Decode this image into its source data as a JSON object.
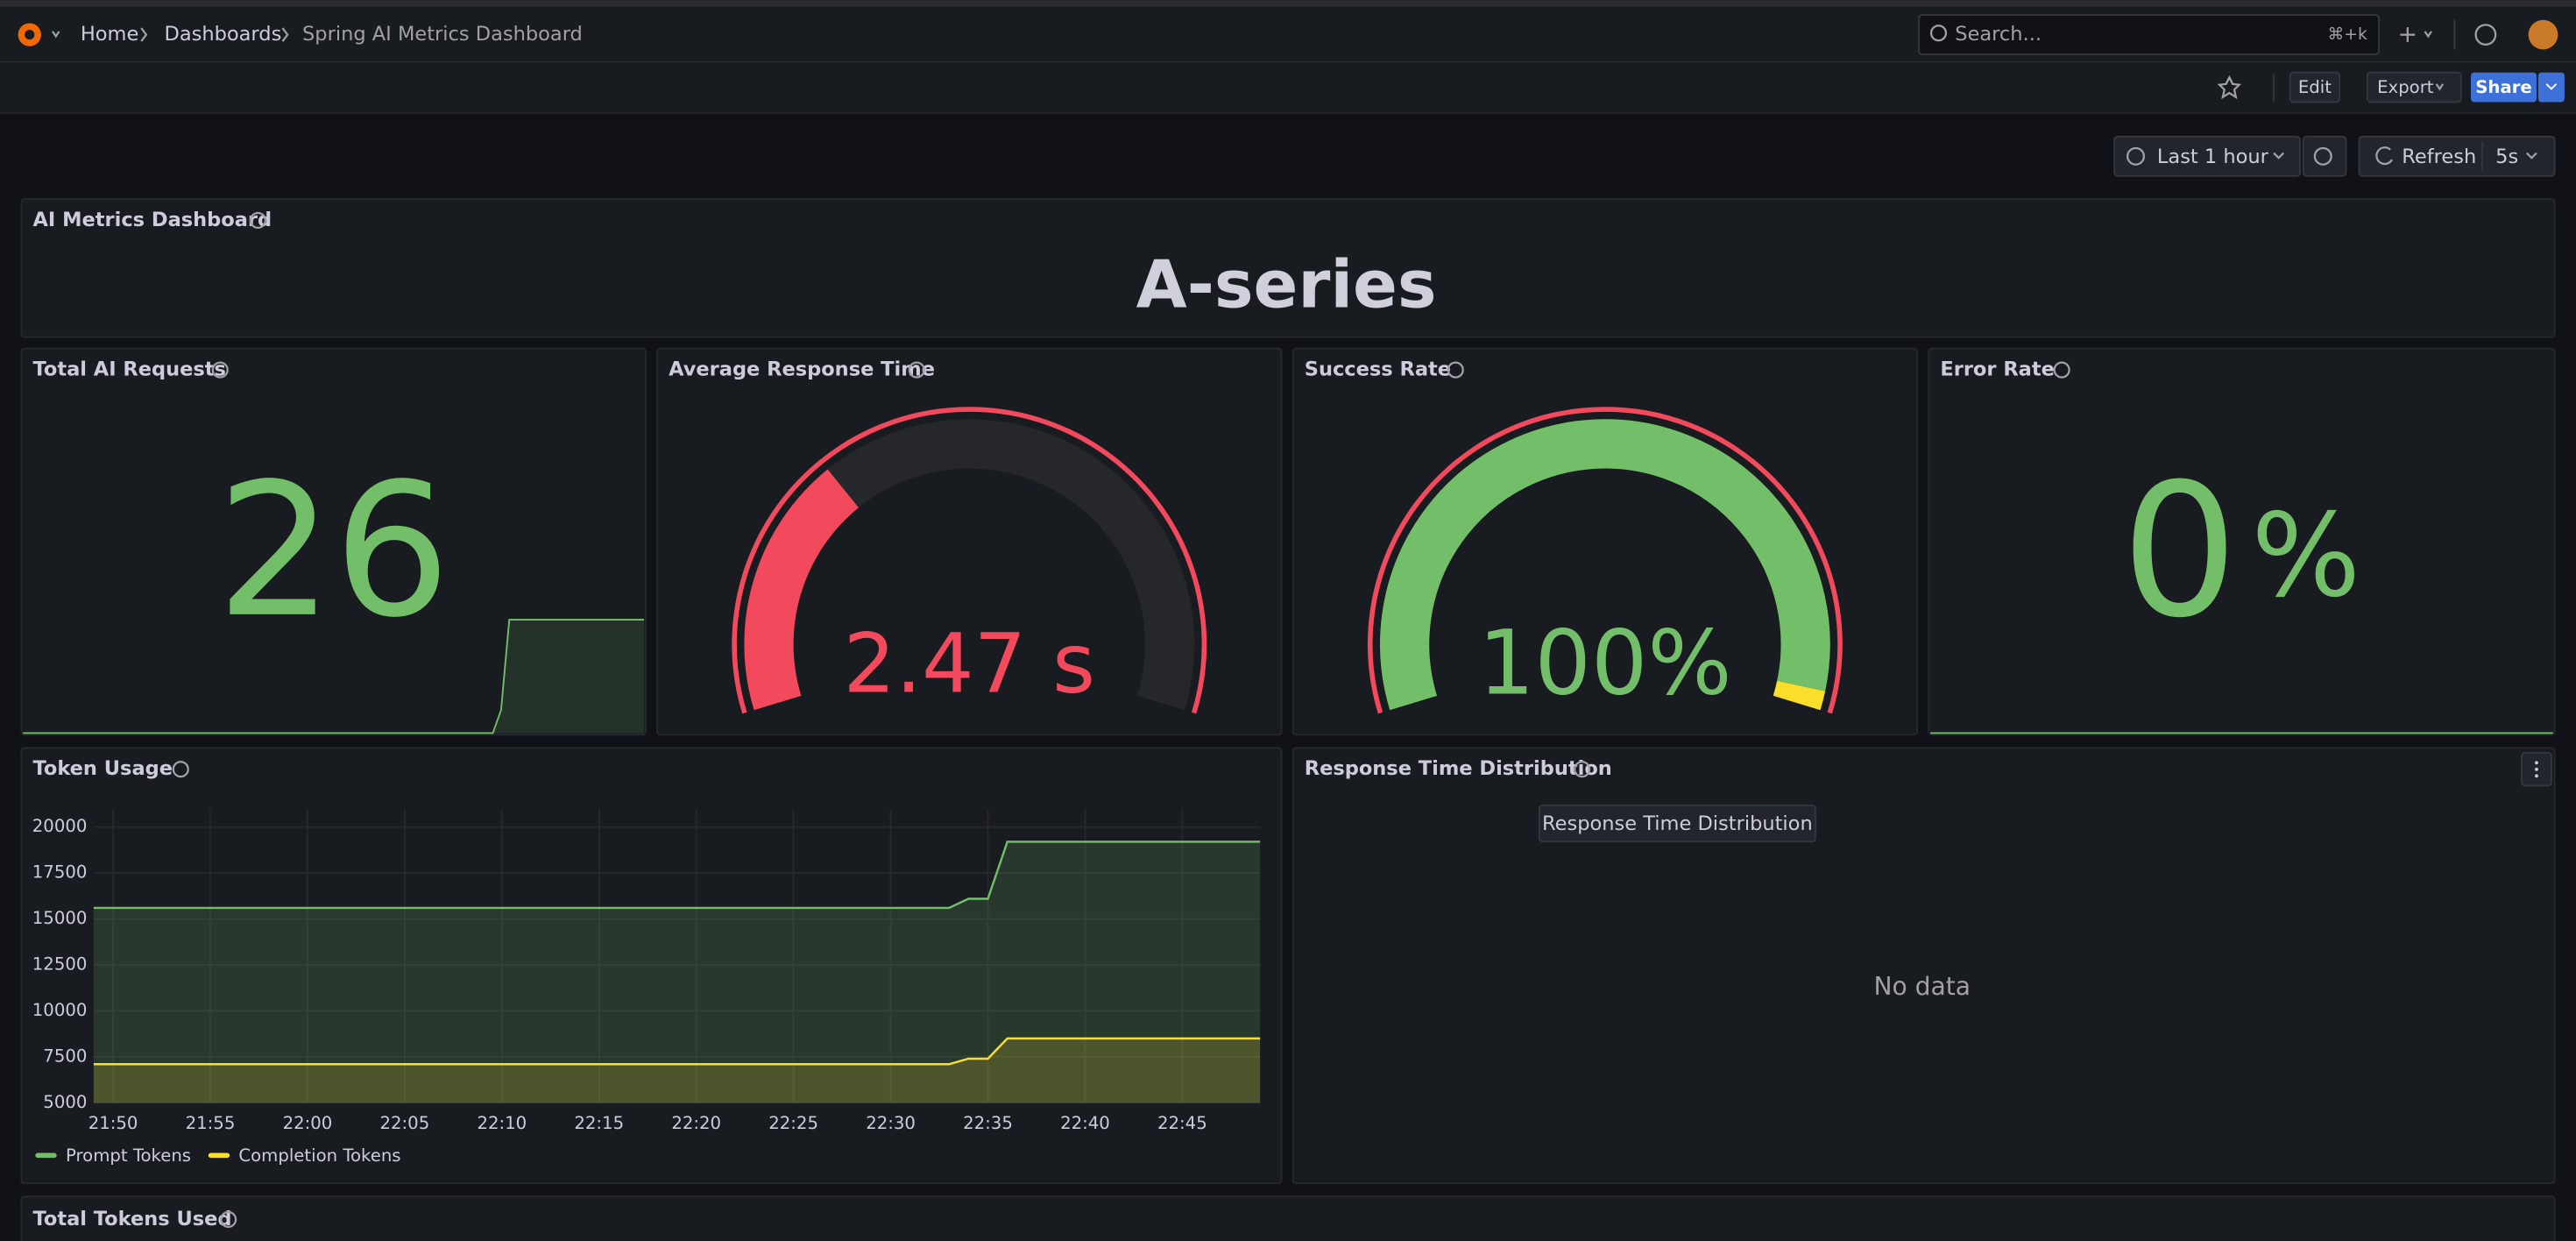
{
  "header": {
    "breadcrumbs": [
      "Home",
      "Dashboards",
      "Spring AI Metrics Dashboard"
    ],
    "search": "Search...",
    "shortcut": "⌘+k"
  },
  "toolbar": {
    "edit": "Edit",
    "export": "Export",
    "share": "Share",
    "time_range": "Last 1 hour",
    "refresh": "Refresh",
    "refresh_interval": "5s"
  },
  "panels": {
    "ai_metrics": {
      "title": "AI Metrics Dashboard",
      "text": "A-series"
    },
    "total_requests": {
      "title": "Total AI Requests",
      "value": 26
    },
    "avg_response": {
      "title": "Average Response Time",
      "value": 2.47,
      "unit": "s"
    },
    "success_rate": {
      "title": "Success Rate",
      "value": 100,
      "unit": "%"
    },
    "error_rate": {
      "title": "Error Rate",
      "value": 0,
      "unit": "%"
    },
    "distribution": {
      "title": "Response Time Distribution",
      "tooltip": "Response Time Distribution",
      "message": "No data"
    },
    "total_tokens": {
      "title": "Total Tokens Used"
    }
  },
  "chart_data": {
    "type": "line",
    "title": "Token Usage",
    "x": [
      "21:49",
      "22:33",
      "22:34",
      "22:35",
      "22:36",
      "22:49"
    ],
    "series": [
      {
        "name": "Prompt Tokens",
        "color": "#73bf69",
        "values": [
          15600,
          15600,
          16100,
          16100,
          19200,
          19200
        ]
      },
      {
        "name": "Completion Tokens",
        "color": "#fade2a",
        "values": [
          7100,
          7100,
          7400,
          7400,
          8500,
          8500
        ]
      }
    ],
    "xlim": [
      "21:49",
      "22:49"
    ],
    "xticks": [
      "21:50",
      "21:55",
      "22:00",
      "22:05",
      "22:10",
      "22:15",
      "22:20",
      "22:25",
      "22:30",
      "22:35",
      "22:40",
      "22:45"
    ],
    "ylim": [
      5000,
      21000
    ],
    "yticks": [
      5000,
      7500,
      10000,
      12500,
      15000,
      17500,
      20000
    ],
    "grid": true,
    "legend": "bottom-left"
  }
}
